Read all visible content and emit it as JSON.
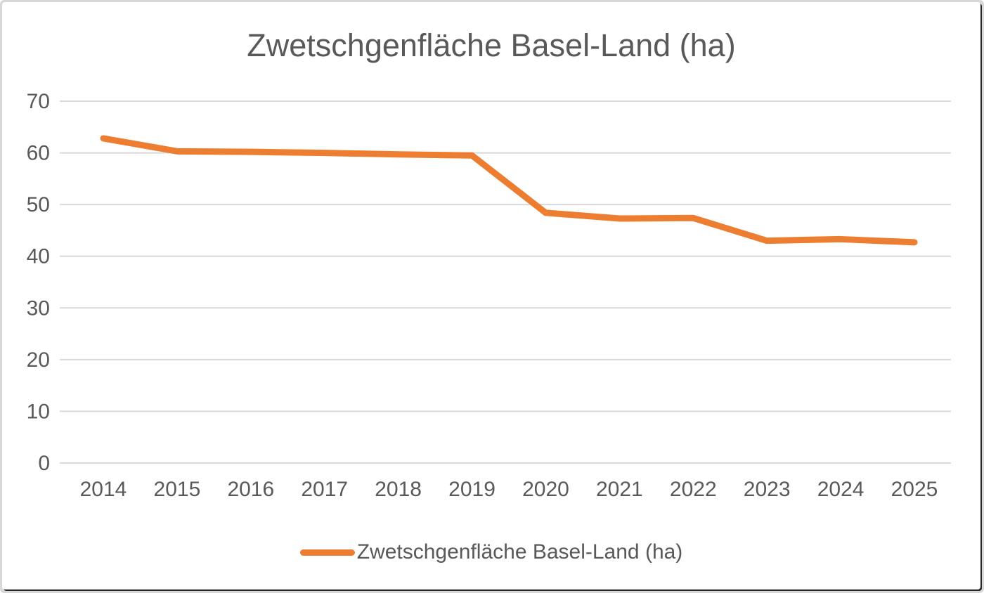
{
  "title": "Zwetschgenfläche Basel-Land (ha)",
  "legend": {
    "label": "Zwetschgenfläche Basel-Land (ha)"
  },
  "colors": {
    "line": "#ED7D31",
    "text": "#595959",
    "gridline": "#D9D9D9",
    "frame_outer": "#D8D8D8",
    "frame_shadow": "#262626",
    "background": "#FFFFFF"
  },
  "chart_data": {
    "type": "line",
    "title": "Zwetschgenfläche Basel-Land (ha)",
    "x": [
      2014,
      2015,
      2016,
      2017,
      2018,
      2019,
      2020,
      2021,
      2022,
      2023,
      2024,
      2025
    ],
    "series": [
      {
        "name": "Zwetschgenfläche Basel-Land (ha)",
        "values": [
          62.8,
          60.3,
          60.2,
          60.0,
          59.7,
          59.5,
          48.4,
          47.3,
          47.4,
          43.0,
          43.3,
          42.7
        ]
      }
    ],
    "xlabel": "",
    "ylabel": "",
    "ylim": [
      0,
      70
    ],
    "yticks": [
      0,
      10,
      20,
      30,
      40,
      50,
      60,
      70
    ],
    "grid": true,
    "legend_position": "bottom"
  }
}
